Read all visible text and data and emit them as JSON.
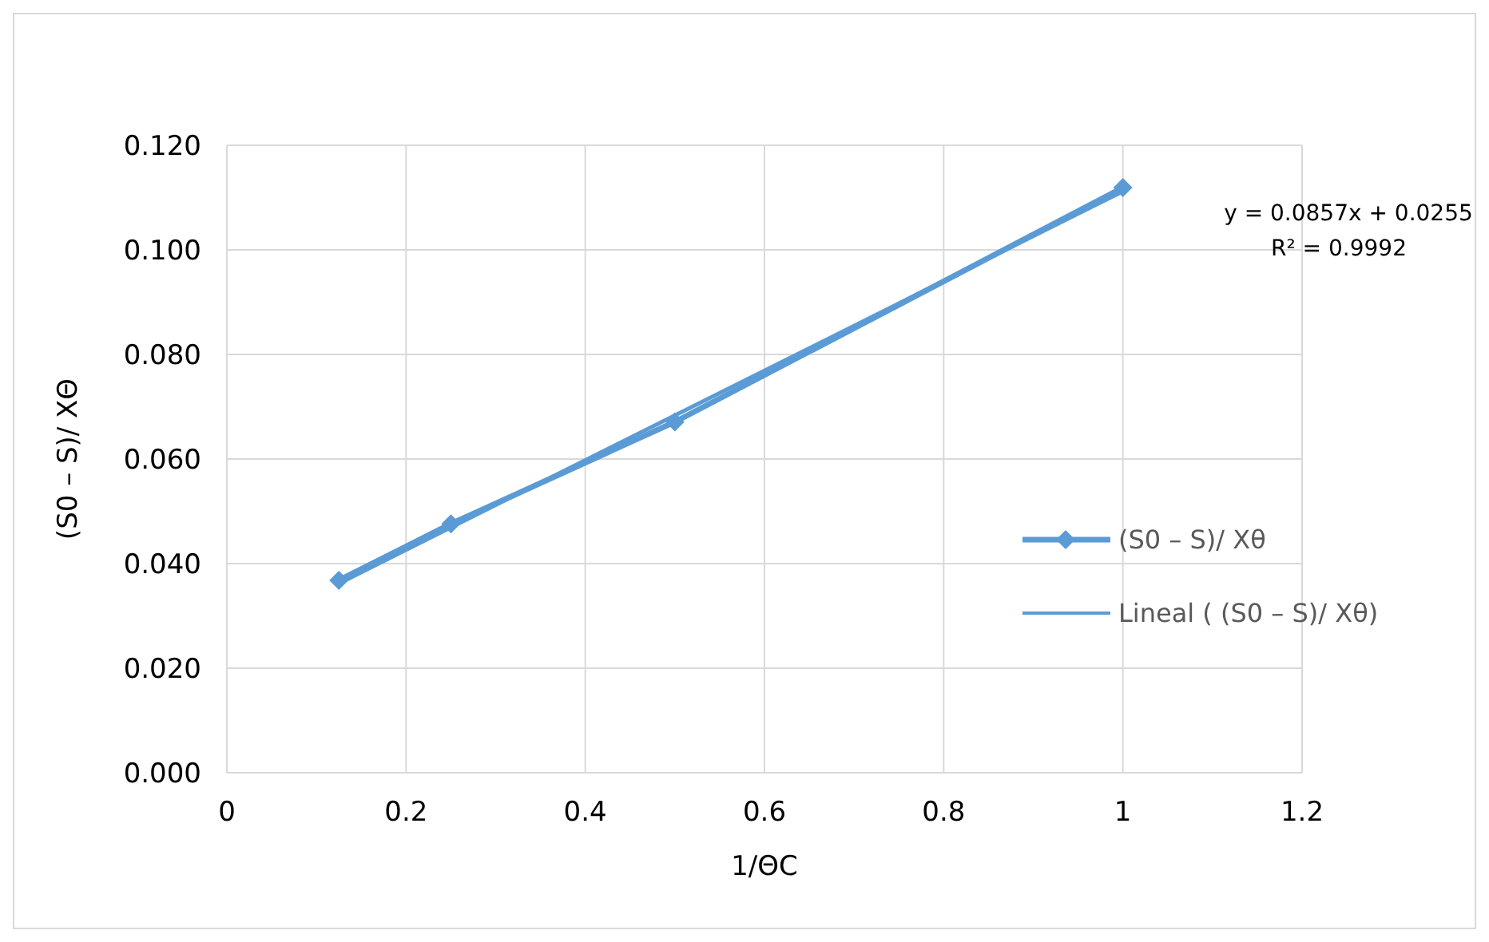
{
  "chart_data": {
    "type": "line",
    "xlabel": "1/ΘC",
    "ylabel": "(S0 – S)/ XΘ",
    "xlim": [
      0,
      1.2
    ],
    "xticks": [
      0,
      0.2,
      0.4,
      0.6,
      0.8,
      1,
      1.2
    ],
    "ylim": [
      0,
      0.12
    ],
    "yticks": [
      {
        "value": 0,
        "label": "0.000"
      },
      {
        "value": 0.02,
        "label": "0.020"
      },
      {
        "value": 0.04,
        "label": "0.040"
      },
      {
        "value": 0.06,
        "label": "0.060"
      },
      {
        "value": 0.08,
        "label": "0.080"
      },
      {
        "value": 0.1,
        "label": "0.100"
      },
      {
        "value": 0.12,
        "label": "0.120"
      }
    ],
    "grid": true,
    "legend": "right",
    "marker": "diamond",
    "line_style": "solid",
    "series": [
      {
        "name": "(S0 – S)/ Xθ",
        "color": "#5b9bd5",
        "x": [
          0.125,
          0.25,
          0.5,
          1
        ],
        "values": [
          0.0368,
          0.0476,
          0.0671,
          0.1119
        ]
      },
      {
        "name": "Lineal ( (S0 – S)/ Xθ)",
        "type": "line",
        "marker": "none",
        "color": "#5b9bd5",
        "x": [
          0.125,
          1
        ],
        "values": [
          0.0362,
          0.1112
        ]
      }
    ],
    "annotations": [
      "y = 0.0857x + 0.0255",
      "R² = 0.9992"
    ]
  }
}
